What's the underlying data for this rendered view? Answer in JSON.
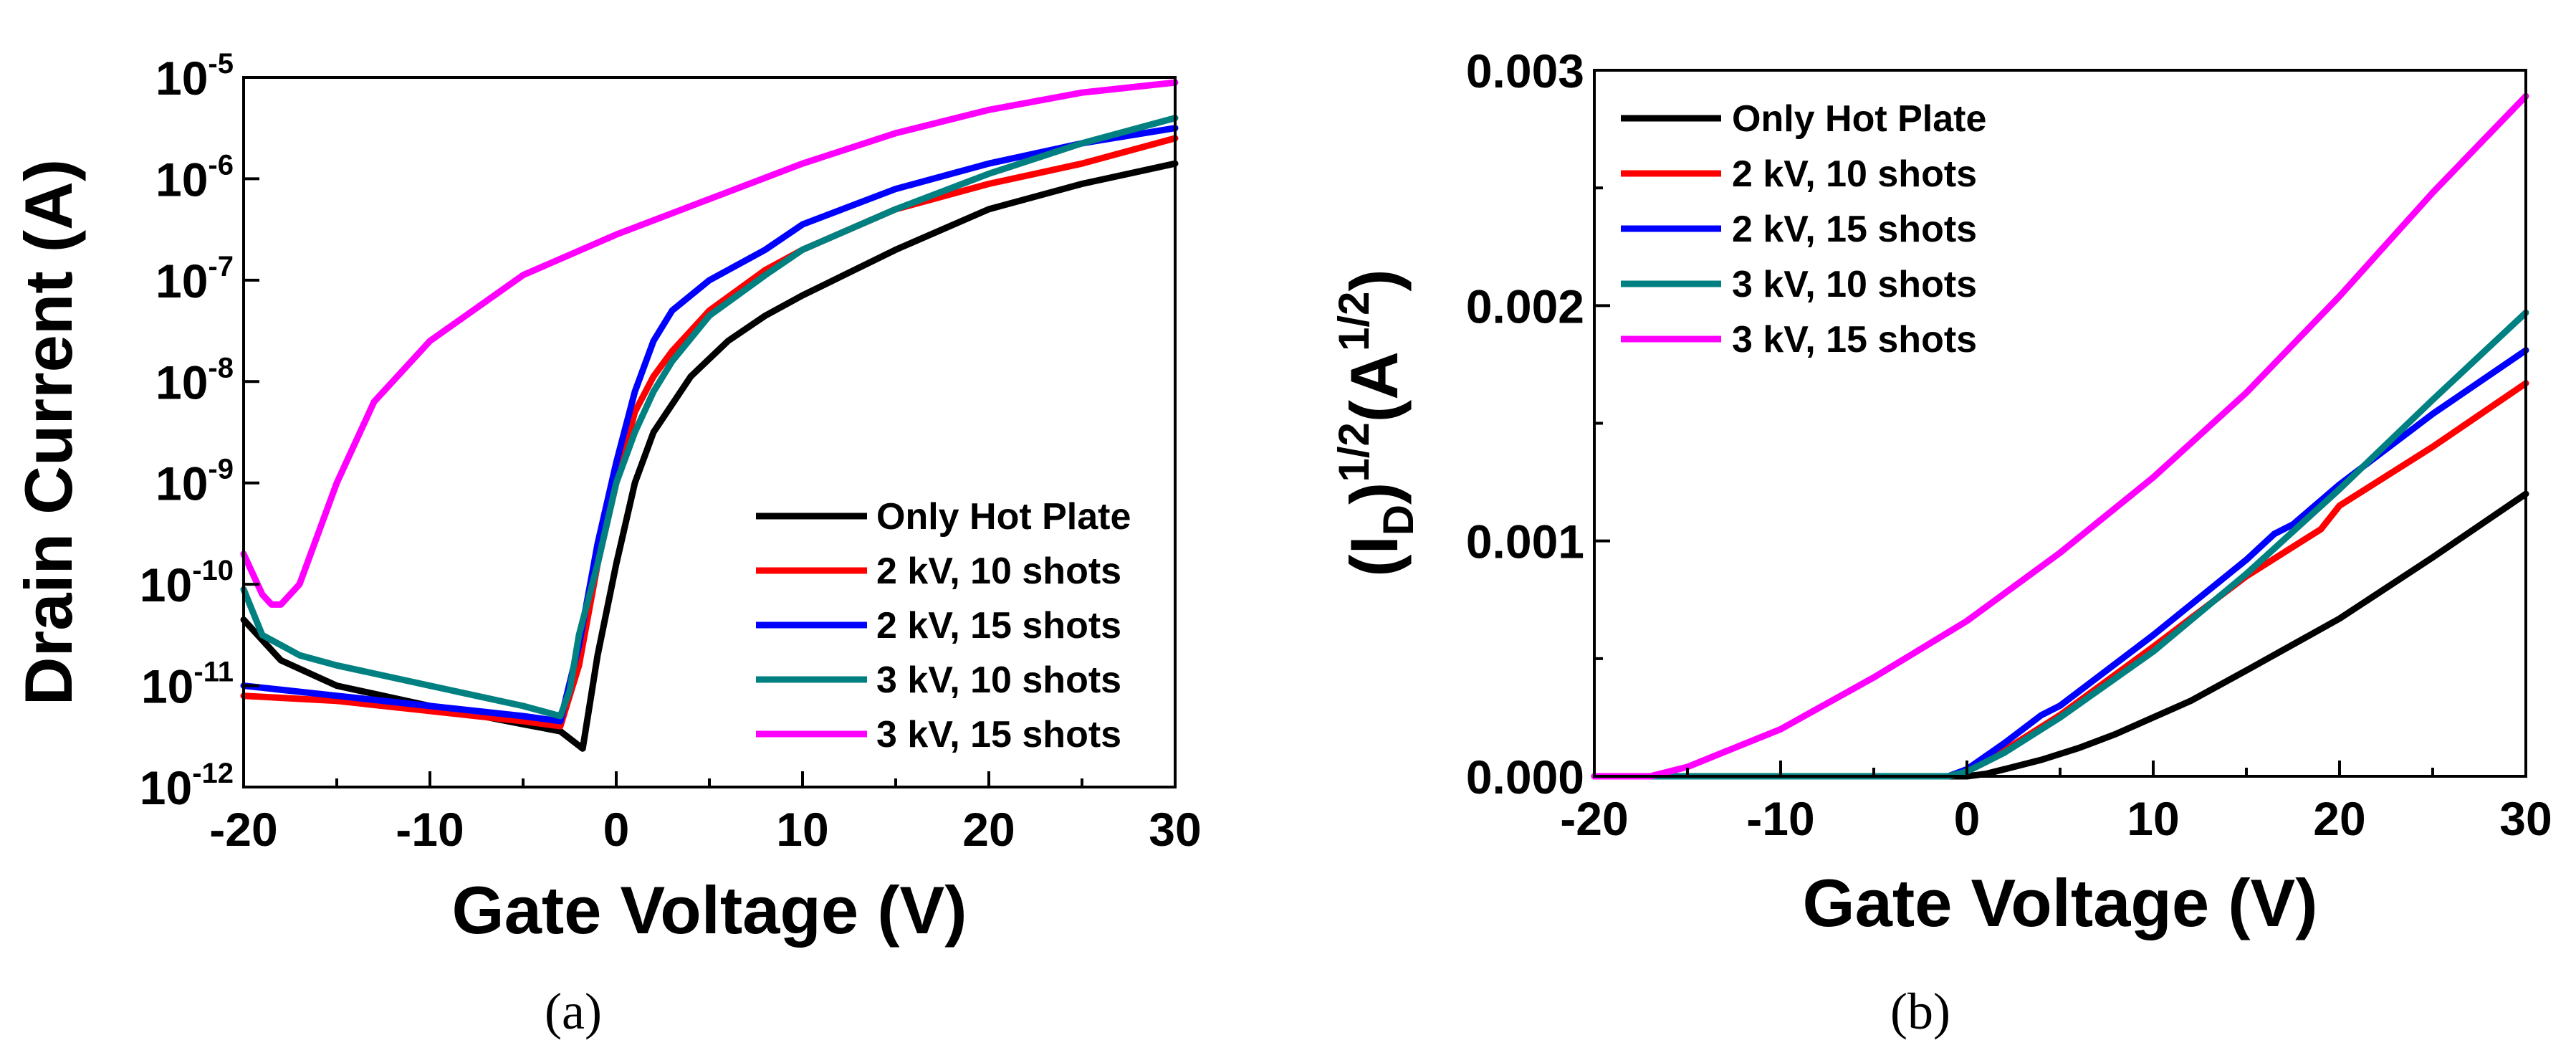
{
  "chart_data": [
    {
      "id": "a",
      "type": "line",
      "caption": "(a)",
      "xlabel": "Gate Voltage (V)",
      "ylabel": "Drain Current (A)",
      "yscale": "log",
      "xlim": [
        -20,
        30
      ],
      "ylim_exp": [
        -12,
        -5
      ],
      "x_ticks": [
        "-20",
        "-10",
        "0",
        "10",
        "20",
        "30"
      ],
      "y_ticks": [
        {
          "base": "10",
          "exp": "-5",
          "value": -5
        },
        {
          "base": "10",
          "exp": "-6",
          "value": -6
        },
        {
          "base": "10",
          "exp": "-7",
          "value": -7
        },
        {
          "base": "10",
          "exp": "-8",
          "value": -8
        },
        {
          "base": "10",
          "exp": "-9",
          "value": -9
        },
        {
          "base": "10",
          "exp": "-10",
          "value": -10
        },
        {
          "base": "10",
          "exp": "-11",
          "value": -11
        },
        {
          "base": "10",
          "exp": "-12",
          "value": -12
        }
      ],
      "legend_position": "bottom-right",
      "series": [
        {
          "name": "Only Hot Plate",
          "color": "#000000",
          "x": [
            -20,
            -18,
            -15,
            -10,
            -5,
            -3,
            -1.8,
            -1,
            0,
            1,
            2,
            4,
            6,
            8,
            10,
            15,
            20,
            25,
            30
          ],
          "log_y": [
            -10.35,
            -10.75,
            -11.0,
            -11.2,
            -11.38,
            -11.45,
            -11.62,
            -10.7,
            -9.8,
            -9.0,
            -8.5,
            -7.95,
            -7.6,
            -7.35,
            -7.15,
            -6.7,
            -6.3,
            -6.05,
            -5.85
          ]
        },
        {
          "name": "2 kV, 10 shots",
          "color": "#ff0000",
          "x": [
            -20,
            -15,
            -10,
            -5,
            -3,
            -2,
            -1,
            0,
            1,
            2,
            3,
            5,
            8,
            10,
            15,
            20,
            25,
            30
          ],
          "log_y": [
            -11.1,
            -11.15,
            -11.25,
            -11.35,
            -11.4,
            -10.8,
            -9.8,
            -9.0,
            -8.3,
            -7.95,
            -7.7,
            -7.3,
            -6.9,
            -6.7,
            -6.3,
            -6.05,
            -5.85,
            -5.6
          ]
        },
        {
          "name": "2 kV, 15 shots",
          "color": "#0000ff",
          "x": [
            -20,
            -15,
            -10,
            -5,
            -3,
            -2,
            -1,
            0,
            1,
            2,
            3,
            5,
            8,
            10,
            15,
            20,
            25,
            30
          ],
          "log_y": [
            -11.0,
            -11.1,
            -11.2,
            -11.3,
            -11.35,
            -10.6,
            -9.6,
            -8.8,
            -8.1,
            -7.6,
            -7.3,
            -7.0,
            -6.7,
            -6.45,
            -6.1,
            -5.85,
            -5.65,
            -5.5
          ]
        },
        {
          "name": "3 kV, 10 shots",
          "color": "#008080",
          "x": [
            -20,
            -19,
            -17,
            -15,
            -10,
            -5,
            -3,
            -2.5,
            -2,
            -1,
            0,
            1,
            2,
            3,
            5,
            8,
            10,
            15,
            20,
            25,
            30
          ],
          "log_y": [
            -10.05,
            -10.5,
            -10.7,
            -10.8,
            -11.0,
            -11.2,
            -11.3,
            -11.05,
            -10.5,
            -9.8,
            -9.0,
            -8.5,
            -8.1,
            -7.8,
            -7.35,
            -6.95,
            -6.7,
            -6.3,
            -5.95,
            -5.65,
            -5.4
          ]
        },
        {
          "name": "3 kV, 15 shots",
          "color": "#ff00ff",
          "x": [
            -20,
            -19,
            -18.5,
            -18,
            -17,
            -16,
            -15,
            -13,
            -10,
            -5,
            0,
            5,
            10,
            15,
            20,
            25,
            30
          ],
          "log_y": [
            -9.7,
            -10.1,
            -10.2,
            -10.2,
            -10.0,
            -9.5,
            -9.0,
            -8.2,
            -7.6,
            -6.95,
            -6.55,
            -6.2,
            -5.85,
            -5.55,
            -5.32,
            -5.15,
            -5.05
          ]
        }
      ]
    },
    {
      "id": "b",
      "type": "line",
      "caption": "(b)",
      "xlabel": "Gate Voltage (V)",
      "ylabel_parts": {
        "open": "(I",
        "sub": "D",
        "close": ")",
        "sup1": "1/2",
        "mid": "(A",
        "sup2": "1/2",
        "end": ")"
      },
      "xlim": [
        -20,
        30
      ],
      "ylim": [
        0,
        0.003
      ],
      "x_ticks": [
        "-20",
        "-10",
        "0",
        "10",
        "20",
        "30"
      ],
      "y_ticks": [
        {
          "label": "0.000",
          "value": 0.0
        },
        {
          "label": "0.001",
          "value": 0.001
        },
        {
          "label": "0.002",
          "value": 0.002
        },
        {
          "label": "0.003",
          "value": 0.003
        }
      ],
      "legend_position": "top-left",
      "series": [
        {
          "name": "Only Hot Plate",
          "color": "#000000",
          "x": [
            -20,
            0,
            1,
            2,
            4,
            6,
            8,
            10,
            12,
            15,
            20,
            25,
            30
          ],
          "y": [
            0,
            0,
            1e-05,
            3e-05,
            7e-05,
            0.00012,
            0.00018,
            0.00025,
            0.00032,
            0.00045,
            0.00067,
            0.00093,
            0.0012
          ]
        },
        {
          "name": "2 kV, 10 shots",
          "color": "#ff0000",
          "x": [
            -20,
            -1,
            0,
            2,
            5,
            10,
            15,
            18,
            19,
            20,
            25,
            30
          ],
          "y": [
            0,
            0,
            2e-05,
            0.00011,
            0.00026,
            0.00055,
            0.00085,
            0.001,
            0.00105,
            0.00115,
            0.0014,
            0.00167
          ]
        },
        {
          "name": "2 kV, 15 shots",
          "color": "#0000ff",
          "x": [
            -20,
            -1,
            0,
            2,
            4,
            5,
            10,
            15,
            16.5,
            17.5,
            20,
            25,
            30
          ],
          "y": [
            0,
            0,
            3e-05,
            0.00014,
            0.00026,
            0.0003,
            0.0006,
            0.00092,
            0.00103,
            0.00107,
            0.00124,
            0.00154,
            0.00181
          ]
        },
        {
          "name": "3 kV, 10 shots",
          "color": "#008080",
          "x": [
            -20,
            -1,
            0,
            2,
            5,
            10,
            15,
            20,
            25,
            30
          ],
          "y": [
            0,
            0,
            2e-05,
            0.0001,
            0.00025,
            0.00053,
            0.00086,
            0.00122,
            0.0016,
            0.00197
          ]
        },
        {
          "name": "3 kV, 15 shots",
          "color": "#ff00ff",
          "x": [
            -20,
            -17,
            -15,
            -10,
            -5,
            0,
            5,
            10,
            15,
            20,
            25,
            30
          ],
          "y": [
            0,
            0,
            4e-05,
            0.0002,
            0.00042,
            0.00066,
            0.00095,
            0.00127,
            0.00163,
            0.00204,
            0.00248,
            0.00289
          ]
        }
      ]
    }
  ]
}
